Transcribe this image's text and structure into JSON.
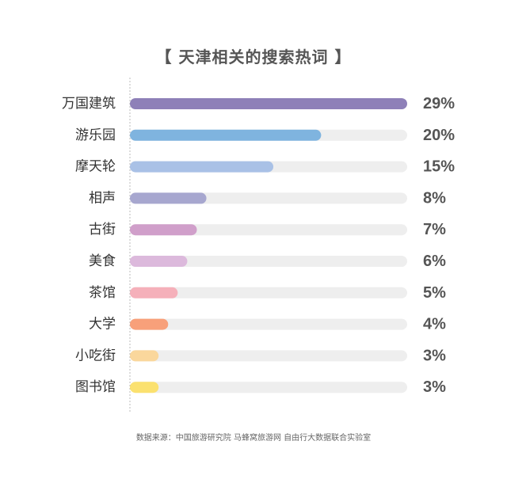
{
  "title": "【 天津相关的搜索热词 】",
  "source": "数据来源：中国旅游研究院 马蜂窝旅游网 自由行大数据联合实验室",
  "colors": {
    "track": "#eeeeee",
    "axis_line": "#bbbbbb",
    "label_text": "#333333",
    "value_text": "#555555",
    "title_text": "#555555"
  },
  "chart_data": {
    "type": "bar",
    "orientation": "horizontal",
    "categories": [
      "万国建筑",
      "游乐园",
      "摩天轮",
      "相声",
      "古街",
      "美食",
      "茶馆",
      "大学",
      "小吃街",
      "图书馆"
    ],
    "values": [
      29,
      20,
      15,
      8,
      7,
      6,
      5,
      4,
      3,
      3
    ],
    "value_labels": [
      "29%",
      "20%",
      "15%",
      "8%",
      "7%",
      "6%",
      "5%",
      "4%",
      "3%",
      "3%"
    ],
    "unit": "%",
    "xlim": [
      0,
      29
    ],
    "bar_colors": [
      "#8e80b8",
      "#7fb4df",
      "#a9c1e6",
      "#a7a7cf",
      "#d09fca",
      "#dcb9dc",
      "#f5b0ba",
      "#f8a07a",
      "#fad79c",
      "#fbe16f"
    ],
    "grid": false,
    "legend": "none"
  }
}
